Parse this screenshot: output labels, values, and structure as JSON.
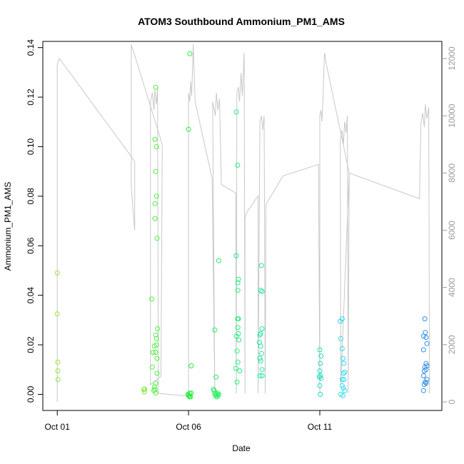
{
  "chart_data": {
    "type": "scatter",
    "title": "ATOM3 Southbound Ammonium_PM1_AMS",
    "xlabel": "Date",
    "ylabel": "Ammonium_PM1_AMS",
    "x_ticks": [
      {
        "day": 1,
        "label": "Oct 01"
      },
      {
        "day": 6,
        "label": "Oct 06"
      },
      {
        "day": 11,
        "label": "Oct 11"
      }
    ],
    "y_ticks": [
      0.0,
      0.02,
      0.04,
      0.06,
      0.08,
      0.1,
      0.12,
      0.14
    ],
    "y_tick_labels": [
      "0.00",
      "0.02",
      "0.04",
      "0.06",
      "0.08",
      "0.10",
      "0.12",
      "0.14"
    ],
    "y2_ticks": [
      0,
      2000,
      4000,
      6000,
      8000,
      10000,
      12000
    ],
    "y2_tick_labels": [
      "0",
      "2000",
      "4000",
      "6000",
      "8000",
      "10000",
      "12000"
    ],
    "xlim_days": [
      0.45,
      15.65
    ],
    "ylim": [
      -0.0065,
      0.1425
    ],
    "y2lim": [
      -300,
      12600
    ],
    "marker_colors": [
      "#9ae639",
      "#4df03e",
      "#1ff07a",
      "#1eddc0",
      "#30d8f0",
      "#2f8ee8"
    ],
    "altitude_line_color": "#c8c8c8",
    "groups": [
      {
        "color": "#9ae639",
        "points": [
          [
            1.0,
            0.049
          ],
          [
            1.0,
            0.0325
          ],
          [
            1.02,
            0.013
          ],
          [
            1.02,
            0.0095
          ],
          [
            1.03,
            0.006
          ]
        ]
      },
      {
        "color": "#7eea3c",
        "points": [
          [
            4.3,
            0.002
          ],
          [
            4.32,
            0.001
          ],
          [
            4.33,
            0.0021
          ]
        ]
      },
      {
        "color": "#4df03e",
        "points": [
          [
            4.75,
            0.124
          ],
          [
            4.72,
            0.103
          ],
          [
            4.78,
            0.1
          ],
          [
            4.75,
            0.09
          ],
          [
            4.78,
            0.08
          ],
          [
            4.72,
            0.077
          ],
          [
            4.72,
            0.071
          ],
          [
            4.8,
            0.063
          ],
          [
            4.6,
            0.0385
          ],
          [
            4.82,
            0.0265
          ],
          [
            4.75,
            0.024
          ],
          [
            4.78,
            0.0225
          ],
          [
            4.7,
            0.0195
          ],
          [
            4.78,
            0.02
          ],
          [
            4.65,
            0.017
          ],
          [
            4.75,
            0.017
          ],
          [
            4.8,
            0.0145
          ],
          [
            4.62,
            0.011
          ],
          [
            4.8,
            0.0085
          ],
          [
            4.7,
            0.003
          ],
          [
            4.72,
            0.002
          ],
          [
            4.68,
            0.0015
          ],
          [
            4.75,
            0.0005
          ],
          [
            4.75,
            0.0045
          ]
        ]
      },
      {
        "color": "#22ee3a",
        "points": [
          [
            6.05,
            0.1375
          ],
          [
            6.0,
            0.107
          ],
          [
            6.1,
            0.0115
          ],
          [
            5.98,
            0.0
          ],
          [
            6.02,
            -0.0005
          ],
          [
            6.05,
            0.0005
          ],
          [
            6.08,
            -0.001
          ],
          [
            6.1,
            0.0005
          ],
          [
            6.0,
            -0.0005
          ],
          [
            6.04,
            -0.001
          ]
        ]
      },
      {
        "color": "#1fee5a",
        "points": [
          [
            7.0,
            0.026
          ],
          [
            7.15,
            0.054
          ],
          [
            7.05,
            0.007
          ],
          [
            6.95,
            0.002
          ],
          [
            7.0,
            0.0005
          ],
          [
            7.02,
            -0.0005
          ],
          [
            7.05,
            0.0
          ],
          [
            7.08,
            -0.001
          ],
          [
            7.1,
            0.0005
          ],
          [
            7.15,
            0.0
          ],
          [
            6.98,
            0.0015
          ],
          [
            7.12,
            -0.0005
          ]
        ]
      },
      {
        "color": "#1ff07a",
        "points": [
          [
            7.82,
            0.114
          ],
          [
            7.87,
            0.0925
          ],
          [
            7.82,
            0.056
          ],
          [
            7.9,
            0.0465
          ],
          [
            7.88,
            0.045
          ],
          [
            7.88,
            0.042
          ],
          [
            7.87,
            0.0305
          ],
          [
            7.9,
            0.0305
          ],
          [
            7.88,
            0.027
          ],
          [
            7.9,
            0.0245
          ],
          [
            7.82,
            0.0235
          ],
          [
            7.92,
            0.022
          ],
          [
            7.85,
            0.0175
          ],
          [
            7.88,
            0.013
          ],
          [
            7.8,
            0.0105
          ],
          [
            7.95,
            0.0095
          ],
          [
            7.85,
            0.005
          ]
        ]
      },
      {
        "color": "#1ee6a0",
        "points": [
          [
            8.78,
            0.052
          ],
          [
            8.75,
            0.042
          ],
          [
            8.8,
            0.0415
          ],
          [
            8.8,
            0.0265
          ],
          [
            8.75,
            0.0245
          ],
          [
            8.72,
            0.024
          ],
          [
            8.7,
            0.021
          ],
          [
            8.75,
            0.0195
          ],
          [
            8.78,
            0.0165
          ],
          [
            8.72,
            0.0145
          ],
          [
            8.75,
            0.0135
          ],
          [
            8.8,
            0.01
          ],
          [
            8.72,
            0.0075
          ],
          [
            8.8,
            0.0075
          ]
        ]
      },
      {
        "color": "#1eddc0",
        "points": [
          [
            11.0,
            0.018
          ],
          [
            11.05,
            0.0155
          ],
          [
            11.02,
            0.0125
          ],
          [
            11.0,
            0.0095
          ],
          [
            11.02,
            0.0075
          ],
          [
            10.98,
            0.007
          ],
          [
            11.05,
            0.0065
          ],
          [
            11.0,
            0.0035
          ],
          [
            11.02,
            0.0
          ]
        ]
      },
      {
        "color": "#30d8f0",
        "points": [
          [
            11.85,
            0.0305
          ],
          [
            11.78,
            0.0295
          ],
          [
            11.8,
            0.0225
          ],
          [
            11.85,
            0.0185
          ],
          [
            11.88,
            0.0145
          ],
          [
            11.92,
            0.0125
          ],
          [
            11.95,
            0.009
          ],
          [
            11.9,
            0.0085
          ],
          [
            11.85,
            0.006
          ],
          [
            11.92,
            0.006
          ],
          [
            11.85,
            0.0035
          ],
          [
            11.9,
            0.0025
          ],
          [
            11.8,
            0.0
          ],
          [
            11.95,
            0.0015
          ],
          [
            11.88,
            -0.0005
          ]
        ]
      },
      {
        "color": "#2f8ee8",
        "points": [
          [
            15.0,
            0.0305
          ],
          [
            15.02,
            0.025
          ],
          [
            14.95,
            0.0235
          ],
          [
            15.05,
            0.023
          ],
          [
            15.08,
            0.0205
          ],
          [
            14.95,
            0.018
          ],
          [
            15.05,
            0.0125
          ],
          [
            15.08,
            0.0115
          ],
          [
            15.0,
            0.011
          ],
          [
            15.05,
            0.01
          ],
          [
            14.98,
            0.0095
          ],
          [
            14.95,
            0.0075
          ],
          [
            15.08,
            0.006
          ],
          [
            15.05,
            0.0045
          ],
          [
            14.98,
            0.004
          ],
          [
            15.02,
            0.005
          ],
          [
            14.95,
            0.0015
          ]
        ]
      }
    ],
    "altitude_path": [
      [
        1.0,
        0
      ],
      [
        1.0,
        11800
      ],
      [
        1.08,
        12000
      ],
      [
        3.8,
        8600
      ],
      [
        3.95,
        8400
      ],
      [
        3.95,
        6000
      ],
      [
        3.82,
        7500
      ],
      [
        3.82,
        12500
      ],
      [
        5.0,
        9000
      ],
      [
        4.95,
        900
      ],
      [
        4.55,
        600
      ],
      [
        4.55,
        10500
      ],
      [
        4.62,
        10800
      ],
      [
        4.68,
        10200
      ],
      [
        4.72,
        10900
      ],
      [
        4.78,
        10400
      ],
      [
        4.82,
        11000
      ],
      [
        4.85,
        300
      ],
      [
        6.0,
        200
      ],
      [
        6.0,
        10800
      ],
      [
        6.05,
        10500
      ],
      [
        6.08,
        11200
      ],
      [
        6.12,
        10700
      ],
      [
        6.18,
        12500
      ],
      [
        6.25,
        10500
      ],
      [
        6.9,
        7800
      ],
      [
        7.0,
        300
      ],
      [
        6.92,
        10500
      ],
      [
        7.02,
        10000
      ],
      [
        7.06,
        10800
      ],
      [
        7.12,
        10200
      ],
      [
        7.18,
        10600
      ],
      [
        7.25,
        7600
      ],
      [
        7.8,
        7300
      ],
      [
        7.82,
        300
      ],
      [
        7.84,
        10800
      ],
      [
        7.9,
        11000
      ],
      [
        7.94,
        10500
      ],
      [
        8.0,
        11500
      ],
      [
        8.05,
        10700
      ],
      [
        8.12,
        12200
      ],
      [
        8.15,
        300
      ],
      [
        8.15,
        6400
      ],
      [
        8.2,
        6600
      ],
      [
        8.65,
        7200
      ],
      [
        8.65,
        300
      ],
      [
        8.72,
        9800
      ],
      [
        8.78,
        10000
      ],
      [
        8.82,
        9500
      ],
      [
        8.88,
        10000
      ],
      [
        8.92,
        300
      ],
      [
        8.95,
        6900
      ],
      [
        9.6,
        7900
      ],
      [
        10.95,
        8300
      ],
      [
        11.0,
        300
      ],
      [
        11.0,
        10000
      ],
      [
        11.05,
        10200
      ],
      [
        11.08,
        9800
      ],
      [
        11.12,
        10500
      ],
      [
        11.18,
        12200
      ],
      [
        11.25,
        11800
      ],
      [
        12.12,
        8000
      ],
      [
        11.8,
        600
      ],
      [
        11.78,
        9200
      ],
      [
        11.85,
        9500
      ],
      [
        11.9,
        9000
      ],
      [
        11.95,
        9800
      ],
      [
        12.0,
        9400
      ],
      [
        12.05,
        10000
      ],
      [
        12.08,
        300
      ],
      [
        12.12,
        8000
      ],
      [
        14.8,
        7100
      ],
      [
        14.85,
        9700
      ],
      [
        14.92,
        10100
      ],
      [
        14.98,
        9600
      ],
      [
        15.02,
        10400
      ],
      [
        15.08,
        9900
      ],
      [
        15.15,
        10300
      ],
      [
        15.18,
        300
      ]
    ]
  }
}
